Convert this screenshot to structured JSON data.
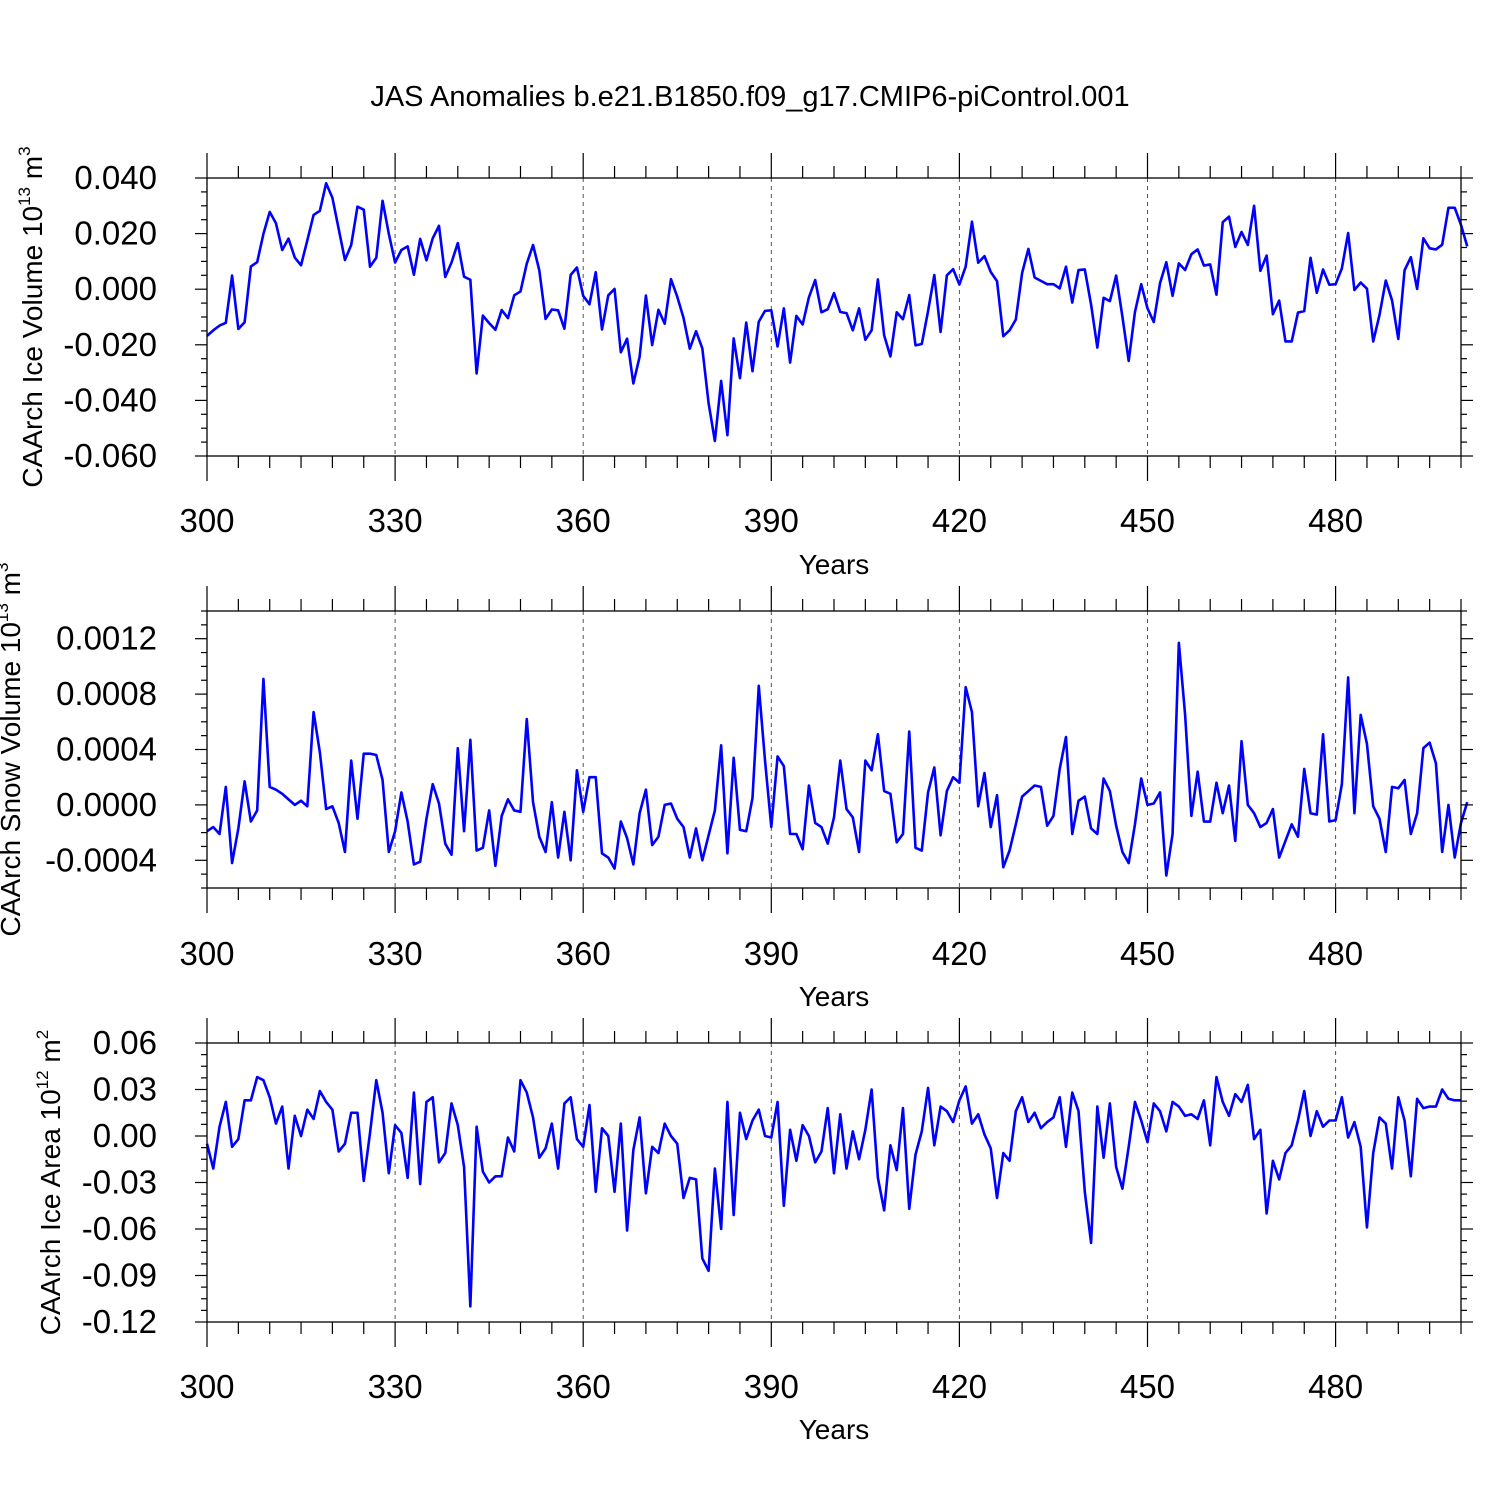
{
  "chart_data": {
    "title": "JAS Anomalies b.e21.B1850.f09_g17.CMIP6-piControl.001",
    "type": "line",
    "line_color": "#0000ff",
    "xlabel": "Years",
    "xlim": [
      300,
      500
    ],
    "xticks": [
      300,
      330,
      360,
      390,
      420,
      450,
      480
    ],
    "x_tick_labels": [
      "300",
      "330",
      "360",
      "390",
      "420",
      "450",
      "480"
    ],
    "x_start": 300,
    "panels": [
      {
        "ylabel_main": "CAArch Ice Volume 10",
        "ylabel_exp": "13",
        "ylabel_unit": " m",
        "ylabel_unit_exp": "3",
        "ylim": [
          -0.06,
          0.04
        ],
        "yticks": [
          -0.06,
          -0.04,
          -0.02,
          0.0,
          0.02,
          0.04
        ],
        "y_tick_labels": [
          "-0.060",
          "-0.040",
          "-0.020",
          "0.000",
          "0.020",
          "0.040"
        ],
        "values": [
          -0.0168,
          -0.0148,
          -0.0131,
          -0.0121,
          0.0049,
          -0.0143,
          -0.0119,
          0.0082,
          0.0097,
          0.0199,
          0.0278,
          0.0237,
          0.0141,
          0.0182,
          0.0114,
          0.0086,
          0.0176,
          0.0267,
          0.0282,
          0.0381,
          0.0329,
          0.0217,
          0.0105,
          0.0159,
          0.0297,
          0.0286,
          0.0081,
          0.0113,
          0.0318,
          0.0199,
          0.0096,
          0.0141,
          0.0154,
          0.0052,
          0.0181,
          0.0104,
          0.0183,
          0.0228,
          0.0044,
          0.0096,
          0.0166,
          0.0045,
          0.0034,
          -0.0303,
          -0.0095,
          -0.0122,
          -0.0146,
          -0.0075,
          -0.0104,
          -0.0022,
          -0.0008,
          0.0092,
          0.0159,
          0.0068,
          -0.0107,
          -0.0073,
          -0.0076,
          -0.0142,
          0.0051,
          0.0078,
          -0.0024,
          -0.0054,
          0.0061,
          -0.0145,
          -0.0022,
          0.0001,
          -0.0227,
          -0.0178,
          -0.0339,
          -0.0243,
          -0.0023,
          -0.0201,
          -0.0074,
          -0.0124,
          0.0036,
          -0.0027,
          -0.0103,
          -0.0214,
          -0.0151,
          -0.0213,
          -0.041,
          -0.0546,
          -0.033,
          -0.0525,
          -0.0177,
          -0.032,
          -0.012,
          -0.0295,
          -0.0117,
          -0.0078,
          -0.0076,
          -0.0206,
          -0.0069,
          -0.0264,
          -0.0096,
          -0.0127,
          -0.0029,
          0.0033,
          -0.0083,
          -0.0072,
          -0.0014,
          -0.0082,
          -0.0086,
          -0.0148,
          -0.0069,
          -0.0182,
          -0.0148,
          0.0035,
          -0.0166,
          -0.0242,
          -0.0083,
          -0.0108,
          -0.0021,
          -0.0202,
          -0.0197,
          -0.0079,
          0.0051,
          -0.0154,
          0.005,
          0.0072,
          0.0017,
          0.0081,
          0.0243,
          0.0095,
          0.0119,
          0.0062,
          0.0029,
          -0.0169,
          -0.0148,
          -0.0109,
          0.0058,
          0.0145,
          0.0042,
          0.003,
          0.0018,
          0.0018,
          0.0003,
          0.0081,
          -0.0048,
          0.0069,
          0.0071,
          -0.0055,
          -0.021,
          -0.0031,
          -0.0043,
          0.0049,
          -0.0099,
          -0.0258,
          -0.0082,
          0.0018,
          -0.0069,
          -0.0118,
          0.0022,
          0.0097,
          -0.0024,
          0.0093,
          0.0069,
          0.0126,
          0.0143,
          0.0085,
          0.0089,
          -0.002,
          0.0241,
          0.0261,
          0.0152,
          0.0206,
          0.0159,
          0.03,
          0.0066,
          0.0121,
          -0.009,
          -0.0041,
          -0.0188,
          -0.0188,
          -0.0084,
          -0.0079,
          0.0113,
          -0.0013,
          0.0071,
          0.0016,
          0.0018,
          0.0075,
          0.0202,
          -0.0003,
          0.0024,
          0.0002,
          -0.0188,
          -0.0093,
          0.0031,
          -0.004,
          -0.0179,
          0.0068,
          0.0115,
          0.0001,
          0.0183,
          0.0147,
          0.0143,
          0.016,
          0.0293,
          0.0293,
          0.0231,
          0.0154
        ]
      },
      {
        "ylabel_main": "CAArch Snow Volume 10",
        "ylabel_exp": "13",
        "ylabel_unit": " m",
        "ylabel_unit_exp": "3",
        "ylim": [
          -0.0006,
          0.0014
        ],
        "yticks": [
          -0.0004,
          0.0,
          0.0004,
          0.0008,
          0.0012
        ],
        "y_tick_labels": [
          "-0.0004",
          "0.0000",
          "0.0004",
          "0.0008",
          "0.0012"
        ],
        "values": [
          -0.00019,
          -0.00016,
          -0.00021,
          0.00013,
          -0.00042,
          -0.00017,
          0.00017,
          -0.00012,
          -4e-05,
          0.00091,
          0.00013,
          0.00011,
          8e-05,
          4e-05,
          0.0,
          3e-05,
          -1e-05,
          0.00067,
          0.00038,
          -3e-05,
          -1e-05,
          -0.00013,
          -0.00034,
          0.00032,
          -0.0001,
          0.00037,
          0.00037,
          0.00036,
          0.00018,
          -0.00034,
          -0.00019,
          9e-05,
          -0.00012,
          -0.00043,
          -0.00041,
          -0.0001,
          0.00015,
          1e-05,
          -0.00028,
          -0.00036,
          0.00041,
          -0.00019,
          0.00047,
          -0.00033,
          -0.00031,
          -4e-05,
          -0.00044,
          -8e-05,
          4e-05,
          -4e-05,
          -5e-05,
          0.00062,
          2e-05,
          -0.00023,
          -0.00034,
          2e-05,
          -0.00038,
          -5e-05,
          -0.0004,
          0.00025,
          -5e-05,
          0.0002,
          0.0002,
          -0.00035,
          -0.00038,
          -0.00046,
          -0.00012,
          -0.00024,
          -0.00043,
          -6e-05,
          0.00011,
          -0.00029,
          -0.00023,
          0.0,
          1e-05,
          -0.0001,
          -0.00016,
          -0.00038,
          -0.00017,
          -0.0004,
          -0.00022,
          -4e-05,
          0.00043,
          -0.00035,
          0.00034,
          -0.00018,
          -0.00019,
          5e-05,
          0.00086,
          0.00032,
          -0.00016,
          0.00035,
          0.00028,
          -0.00021,
          -0.00021,
          -0.00032,
          0.00014,
          -0.00013,
          -0.00016,
          -0.00028,
          -9e-05,
          0.00032,
          -3e-05,
          -9e-05,
          -0.00034,
          0.00032,
          0.00025,
          0.00051,
          0.0001,
          8e-05,
          -0.00027,
          -0.00021,
          0.00053,
          -0.00031,
          -0.00033,
          9e-05,
          0.00027,
          -0.00022,
          0.0001,
          0.0002,
          0.00016,
          0.00085,
          0.00067,
          -1e-05,
          0.00023,
          -0.00016,
          7e-05,
          -0.00045,
          -0.00033,
          -0.00014,
          6e-05,
          0.0001,
          0.00014,
          0.00013,
          -0.00015,
          -8e-05,
          0.00026,
          0.00049,
          -0.00021,
          3e-05,
          6e-05,
          -0.00017,
          -0.00021,
          0.00019,
          0.0001,
          -0.00015,
          -0.00034,
          -0.00042,
          -0.00014,
          0.00019,
          0.0,
          1e-05,
          9e-05,
          -0.00051,
          -0.00021,
          0.00117,
          0.00065,
          -8e-05,
          0.00024,
          -0.00012,
          -0.00012,
          0.00016,
          -6e-05,
          0.00014,
          -0.00026,
          0.00046,
          0.0,
          -6e-05,
          -0.00016,
          -0.00013,
          -3e-05,
          -0.00038,
          -0.00026,
          -0.00014,
          -0.00023,
          0.00026,
          -6e-05,
          -7e-05,
          0.00051,
          -0.00012,
          -0.00011,
          0.00015,
          0.00092,
          -6e-05,
          0.00065,
          0.00044,
          -1e-05,
          -0.0001,
          -0.00034,
          0.00013,
          0.00012,
          0.00018,
          -0.00021,
          -6e-05,
          0.00041,
          0.00045,
          0.0003,
          -0.00034,
          0.0,
          -0.00038,
          -0.00013,
          2e-05
        ]
      },
      {
        "ylabel_main": "CAArch Ice Area 10",
        "ylabel_exp": "12",
        "ylabel_unit": " m",
        "ylabel_unit_exp": "2",
        "ylim": [
          -0.12,
          0.06
        ],
        "yticks": [
          -0.12,
          -0.09,
          -0.06,
          -0.03,
          0.0,
          0.03,
          0.06
        ],
        "y_tick_labels": [
          "-0.12",
          "-0.09",
          "-0.06",
          "-0.03",
          "0.00",
          "0.03",
          "0.06"
        ],
        "values": [
          -0.005,
          -0.021,
          0.006,
          0.022,
          -0.007,
          -0.002,
          0.023,
          0.023,
          0.038,
          0.036,
          0.025,
          0.008,
          0.019,
          -0.021,
          0.013,
          0.0,
          0.017,
          0.011,
          0.029,
          0.022,
          0.017,
          -0.01,
          -0.005,
          0.015,
          0.015,
          -0.029,
          0.002,
          0.036,
          0.015,
          -0.024,
          0.007,
          0.002,
          -0.027,
          0.028,
          -0.031,
          0.022,
          0.025,
          -0.017,
          -0.011,
          0.021,
          0.007,
          -0.02,
          -0.11,
          0.006,
          -0.023,
          -0.03,
          -0.026,
          -0.026,
          -0.001,
          -0.01,
          0.036,
          0.028,
          0.012,
          -0.014,
          -0.008,
          0.008,
          -0.021,
          0.021,
          0.025,
          -0.002,
          -0.007,
          0.02,
          -0.036,
          0.005,
          0.0,
          -0.036,
          0.008,
          -0.061,
          -0.009,
          0.012,
          -0.037,
          -0.007,
          -0.011,
          0.008,
          0.0,
          -0.005,
          -0.04,
          -0.027,
          -0.028,
          -0.079,
          -0.087,
          -0.021,
          -0.06,
          0.022,
          -0.051,
          0.015,
          -0.002,
          0.01,
          0.017,
          0.0,
          -0.001,
          0.022,
          -0.045,
          0.004,
          -0.016,
          0.007,
          0.0,
          -0.017,
          -0.01,
          0.018,
          -0.024,
          0.014,
          -0.021,
          0.003,
          -0.015,
          0.004,
          0.03,
          -0.027,
          -0.048,
          -0.006,
          -0.022,
          0.018,
          -0.047,
          -0.012,
          0.003,
          0.031,
          -0.006,
          0.019,
          0.016,
          0.009,
          0.023,
          0.032,
          0.008,
          0.014,
          0.001,
          -0.008,
          -0.04,
          -0.011,
          -0.016,
          0.016,
          0.025,
          0.009,
          0.015,
          0.005,
          0.009,
          0.012,
          0.025,
          -0.007,
          0.028,
          0.016,
          -0.036,
          -0.069,
          0.019,
          -0.014,
          0.021,
          -0.02,
          -0.034,
          -0.007,
          0.022,
          0.01,
          -0.004,
          0.021,
          0.016,
          0.003,
          0.022,
          0.019,
          0.013,
          0.014,
          0.011,
          0.023,
          -0.006,
          0.038,
          0.022,
          0.013,
          0.027,
          0.022,
          0.033,
          -0.002,
          0.004,
          -0.05,
          -0.016,
          -0.028,
          -0.011,
          -0.006,
          0.01,
          0.029,
          0.0,
          0.016,
          0.006,
          0.01,
          0.01,
          0.025,
          -0.001,
          0.009,
          -0.007,
          -0.059,
          -0.011,
          0.012,
          0.008,
          -0.021,
          0.025,
          0.01,
          -0.026,
          0.024,
          0.018,
          0.019,
          0.019,
          0.03,
          0.024,
          0.023,
          0.023
        ]
      }
    ]
  }
}
